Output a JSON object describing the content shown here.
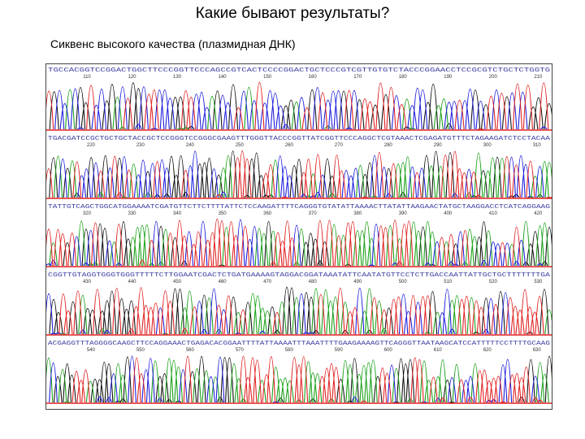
{
  "slide": {
    "title": "Какие бывают результаты?",
    "subtitle": "Сиквенс высокого качества (плазмидная ДНК)"
  },
  "colors": {
    "A": "#18a018",
    "C": "#1c1cdc",
    "G": "#111111",
    "T": "#e02020",
    "baseline": "#e02020",
    "sequence_text": "#3a3aa0"
  },
  "rows": [
    {
      "sequence": "TGCCACGGTCCGGACTGGCTTCCCGGTTCCCAGCCGTCACTCCCCGGACTGCTCCCGTCGTTGTGTCTACCCGGAACCTCCGCGTCTGCTCTGGTG",
      "positions": [
        "110",
        "120",
        "130",
        "140",
        "150",
        "160",
        "170",
        "180",
        "190",
        "200",
        "210"
      ]
    },
    {
      "sequence": "TGACGATCCGCTGCTGCTACCGCTCCGGGTCCGGGCGAAGTTTGGGTTACCCGGTTATCGGTTCCCAGGCTCGTAAACTCGAGATGTTTCTAGAAGATCTCCTACAA",
      "positions": [
        "220",
        "230",
        "240",
        "250",
        "260",
        "270",
        "280",
        "290",
        "300",
        "310"
      ]
    },
    {
      "sequence": "TATTGTCAGCTGGCATGGAAAATCGATGTTCTTCTTTTATTCTCCAAGATTTTCAGGGTGTATATTAAAACTTATATTAAGAACTATGCTAAGGACCTCATCAGGAAG",
      "positions": [
        "320",
        "330",
        "340",
        "350",
        "360",
        "370",
        "380",
        "390",
        "400",
        "410",
        "420"
      ]
    },
    {
      "sequence": "CGGTTGTAGGTGGGTGGGTTTTTCTTGGAATCGACTCTGATGAAAAGTAGGACGGATAAATATTCAATATGTTCCTCTTGACCAATTATTGCTGCTTTTTTTGA",
      "positions": [
        "430",
        "440",
        "450",
        "460",
        "470",
        "480",
        "490",
        "500",
        "510",
        "520",
        "530"
      ]
    },
    {
      "sequence": "ACGAGGTTTAGGGGCAAGCTTCCAGGAAACTGAGACACGGAATTTTATTAAAATTTAAATTTTGAAGAAAAGTTCAGGGTTAATAAGCATCCATTTTTCCTTTTGCAAG",
      "positions": [
        "540",
        "550",
        "560",
        "570",
        "580",
        "590",
        "600",
        "610",
        "620",
        "630"
      ]
    }
  ]
}
